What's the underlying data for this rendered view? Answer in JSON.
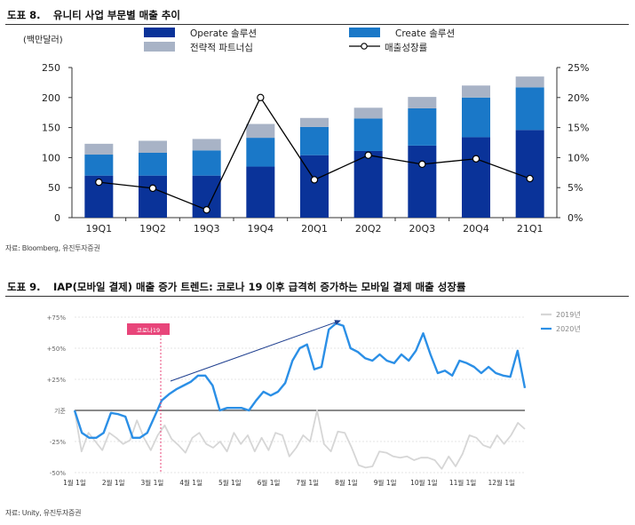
{
  "figure8": {
    "title_num": "도표 8.",
    "title": "유니티 사업 부문별 매출 추이",
    "source": "자료: Bloomberg, 유진투자증권",
    "colors": {
      "operate": "#0a3399",
      "create": "#1a78c8",
      "partner": "#a8b3c6",
      "line": "#000000"
    }
  },
  "figure9": {
    "title_num": "도표 9.",
    "title": "IAP(모바일 결제) 매출 증가 트렌드: 코로나 19 이후 급격히 증가하는 모바일 결제 매출 성장률",
    "source": "자료: Unity, 유진투자증권",
    "covid_label": "코로나19",
    "colors": {
      "y2019": "#d6d6d6",
      "y2020": "#2b8fe6",
      "covid": "#e8457a",
      "arrow": "#1f3f8f"
    }
  },
  "chart_data": [
    {
      "type": "bar",
      "stacked": true,
      "ylabel": "(백만달러)",
      "categories": [
        "19Q1",
        "19Q2",
        "19Q3",
        "19Q4",
        "20Q1",
        "20Q2",
        "20Q3",
        "20Q4",
        "21Q1"
      ],
      "ylim": [
        0,
        250
      ],
      "yticks": [
        0,
        50,
        100,
        150,
        200,
        250
      ],
      "y2lim": [
        0,
        25
      ],
      "y2ticks": [
        "0%",
        "5%",
        "10%",
        "15%",
        "20%",
        "25%"
      ],
      "series": [
        {
          "name": "Operate 솔루션",
          "values": [
            70,
            70,
            70,
            85,
            104,
            111,
            120,
            134,
            146
          ]
        },
        {
          "name": "Create 솔루션",
          "values": [
            35,
            38,
            42,
            48,
            47,
            54,
            62,
            66,
            71
          ]
        },
        {
          "name": "전략적 파트너십",
          "values": [
            18,
            20,
            19,
            23,
            15,
            18,
            19,
            20,
            18
          ]
        }
      ],
      "line": {
        "name": "매출성장률",
        "axis": "right",
        "values": [
          5.9,
          4.9,
          1.3,
          20.0,
          6.3,
          10.4,
          8.9,
          9.8,
          6.5
        ]
      },
      "legend": "top"
    },
    {
      "type": "line",
      "ylim": [
        -50,
        75
      ],
      "yticks": [
        "+75%",
        "+50%",
        "+25%",
        "기준",
        "-25%",
        "-50%"
      ],
      "yticks_values": [
        75,
        50,
        25,
        0,
        -25,
        -50
      ],
      "x_ticks": [
        "1월 1일",
        "2월 1일",
        "3월 1일",
        "4월 1일",
        "5월 1일",
        "6월 1일",
        "7월 1일",
        "8월 1일",
        "9월 1일",
        "10월 1일",
        "11월 1일",
        "12월 1일"
      ],
      "annotations": [
        "코로나19"
      ],
      "legend": "top-right",
      "series": [
        {
          "name": "2019년",
          "values": [
            0,
            -33,
            -18,
            -25,
            -32,
            -18,
            -22,
            -27,
            -24,
            -8,
            -22,
            -32,
            -20,
            -12,
            -23,
            -28,
            -34,
            -22,
            -18,
            -27,
            -30,
            -25,
            -33,
            -18,
            -27,
            -20,
            -33,
            -22,
            -32,
            -18,
            -20,
            -37,
            -30,
            -20,
            -25,
            0,
            -27,
            -33,
            -17,
            -18,
            -30,
            -44,
            -46,
            -45,
            -33,
            -34,
            -37,
            -38,
            -37,
            -40,
            -38,
            -38,
            -40,
            -47,
            -37,
            -45,
            -35,
            -20,
            -22,
            -28,
            -30,
            -20,
            -27,
            -20,
            -10,
            -15
          ]
        },
        {
          "name": "2020년",
          "values": [
            0,
            -18,
            -22,
            -22,
            -18,
            -2,
            -3,
            -5,
            -22,
            -22,
            -18,
            -5,
            8,
            13,
            17,
            20,
            23,
            28,
            28,
            20,
            0,
            2,
            2,
            2,
            0,
            8,
            15,
            12,
            15,
            22,
            40,
            50,
            53,
            33,
            35,
            65,
            70,
            68,
            50,
            47,
            42,
            40,
            45,
            40,
            38,
            45,
            40,
            48,
            62,
            45,
            30,
            32,
            28,
            40,
            38,
            35,
            30,
            35,
            30,
            28,
            27,
            48,
            18
          ]
        }
      ]
    }
  ]
}
